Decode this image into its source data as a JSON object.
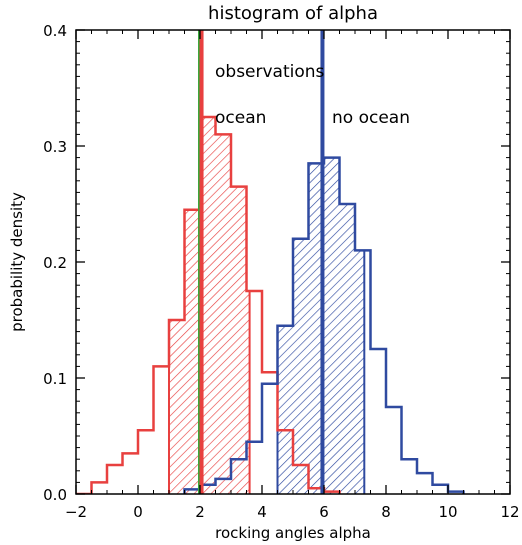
{
  "chart_data": {
    "type": "histogram",
    "title": "histogram of alpha",
    "xlabel": "rocking angles alpha",
    "ylabel": "probability density",
    "xlim": [
      -2,
      12
    ],
    "ylim": [
      0,
      0.4
    ],
    "xticks": [
      "−2",
      "0",
      "2",
      "4",
      "6",
      "8",
      "10",
      "12"
    ],
    "yticks": [
      "0.0",
      "0.1",
      "0.2",
      "0.3",
      "0.4"
    ],
    "bin_width": 0.5,
    "grid": false,
    "series": [
      {
        "name": "ocean",
        "color": "#e8403f",
        "bin_starts": [
          -2.0,
          -1.5,
          -1.0,
          -0.5,
          0.0,
          0.5,
          1.0,
          1.5,
          2.0,
          2.5,
          3.0,
          3.5,
          4.0,
          4.5,
          5.0,
          5.5,
          6.0
        ],
        "values": [
          0.0,
          0.01,
          0.025,
          0.035,
          0.055,
          0.11,
          0.15,
          0.245,
          0.325,
          0.31,
          0.265,
          0.175,
          0.105,
          0.055,
          0.025,
          0.005,
          0.002
        ],
        "shaded_range": [
          1.0,
          3.6
        ]
      },
      {
        "name": "no ocean",
        "color": "#2f4aa0",
        "bin_starts": [
          1.5,
          2.0,
          2.5,
          3.0,
          3.5,
          4.0,
          4.5,
          5.0,
          5.5,
          6.0,
          6.5,
          7.0,
          7.5,
          8.0,
          8.5,
          9.0,
          9.5,
          10.0
        ],
        "values": [
          0.004,
          0.008,
          0.013,
          0.03,
          0.045,
          0.095,
          0.145,
          0.22,
          0.285,
          0.29,
          0.25,
          0.21,
          0.125,
          0.075,
          0.03,
          0.018,
          0.008,
          0.002
        ],
        "shaded_range": [
          4.5,
          7.3
        ]
      }
    ],
    "vertical_lines": [
      {
        "name": "observations",
        "x": 2.0,
        "color": "#3aa83a"
      },
      {
        "name": "ocean",
        "x": 2.05,
        "color": "#e8403f"
      },
      {
        "name": "no ocean",
        "x": 5.95,
        "color": "#2f4aa0"
      }
    ],
    "line_labels": [
      {
        "text": "observations",
        "color": "#3aa83a"
      },
      {
        "text": "ocean",
        "color": "#e8403f"
      },
      {
        "text": "no ocean",
        "color": "#2f4aa0"
      }
    ]
  }
}
